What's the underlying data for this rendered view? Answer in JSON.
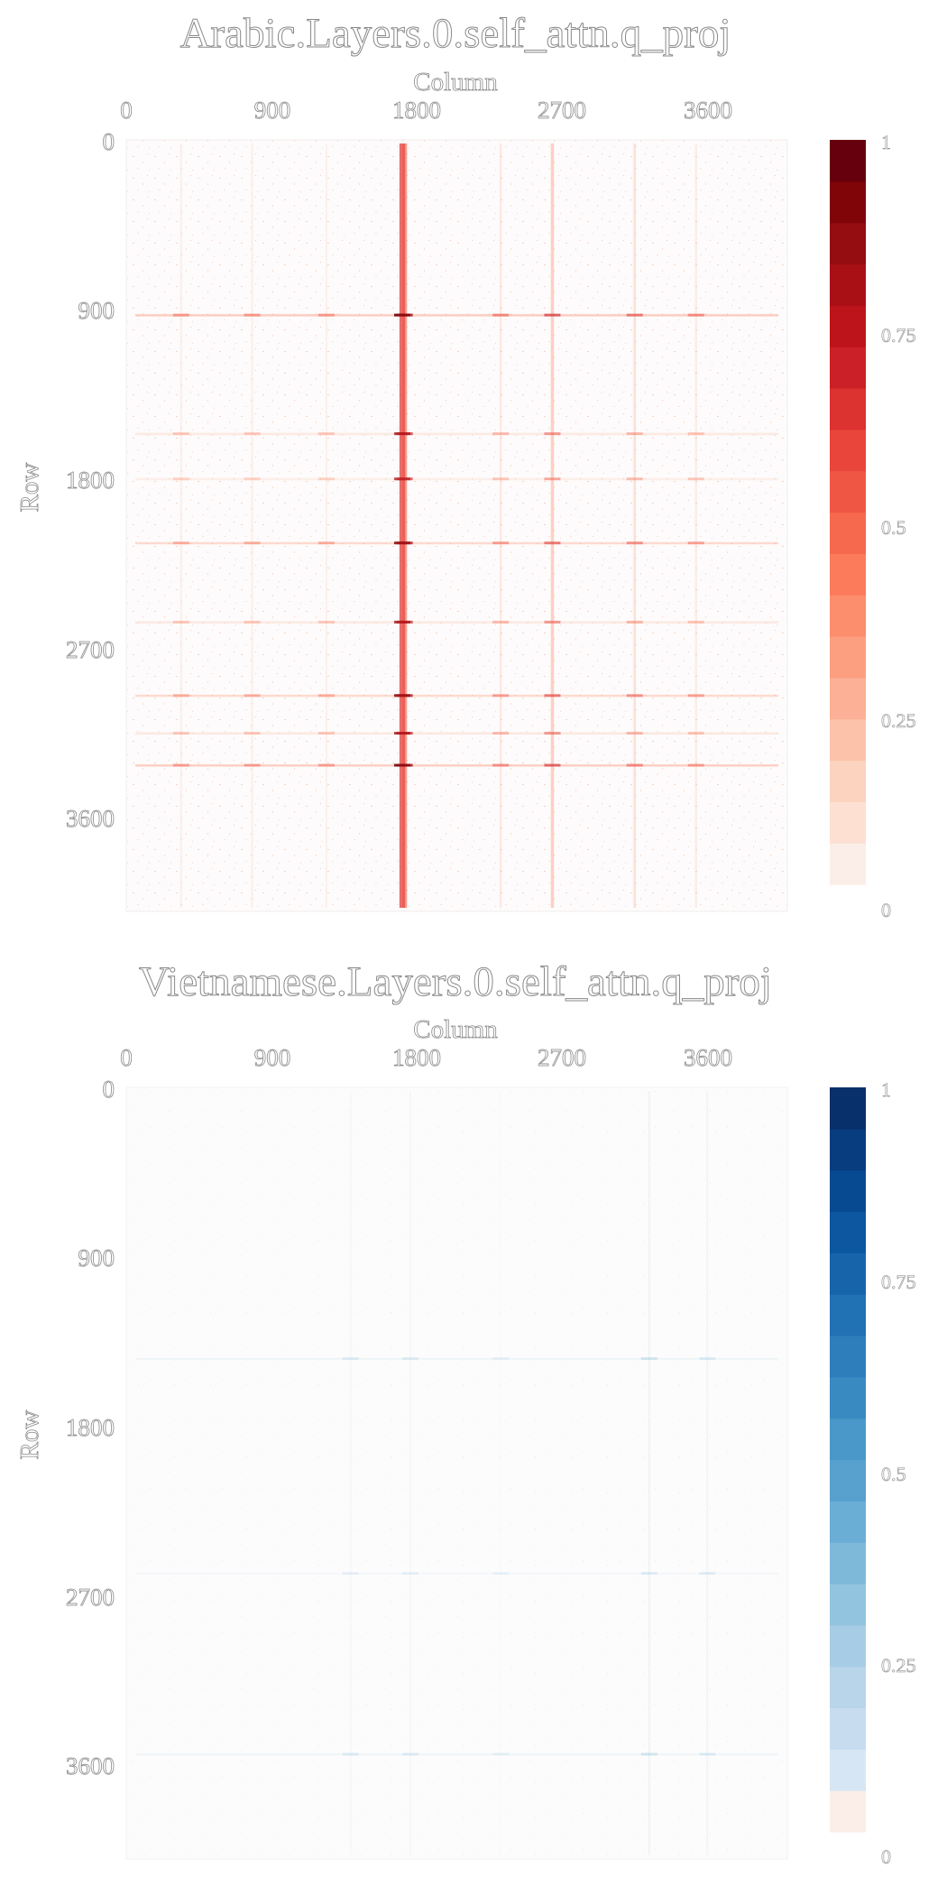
{
  "chart_data": [
    {
      "type": "heatmap",
      "title": "Arabic.Layers.0.self_attn.q_proj",
      "xlabel": "Column",
      "ylabel": "Row",
      "x_ticks": [
        "0",
        "900",
        "1800",
        "2700",
        "3600"
      ],
      "y_ticks": [
        "0",
        "900",
        "1800",
        "2700",
        "3600"
      ],
      "x_range": [
        0,
        4096
      ],
      "y_range": [
        0,
        4096
      ],
      "colorbar": {
        "colormap": "Reds",
        "ticks": [
          "1",
          "0.75",
          "0.5",
          "0.25",
          "0"
        ],
        "range": [
          0,
          1
        ],
        "colors": [
          "#fbeee8",
          "#fde0d2",
          "#fcd3bf",
          "#fcc2aa",
          "#fcb095",
          "#fc9f80",
          "#fc8d6d",
          "#fb7b5b",
          "#f6694f",
          "#f05644",
          "#e9453a",
          "#dc3230",
          "#cb2027",
          "#bc141a",
          "#a91016",
          "#950c11",
          "#7f0509",
          "#67000d"
        ]
      },
      "hot_columns": [
        {
          "col": 1710,
          "intensity": 0.22
        },
        {
          "col": 1725,
          "intensity": 0.18
        },
        {
          "col": 2640,
          "intensity": 0.12
        },
        {
          "col": 2320,
          "intensity": 0.08
        },
        {
          "col": 3150,
          "intensity": 0.09
        },
        {
          "col": 3530,
          "intensity": 0.07
        },
        {
          "col": 1240,
          "intensity": 0.06
        },
        {
          "col": 780,
          "intensity": 0.06
        },
        {
          "col": 340,
          "intensity": 0.06
        }
      ],
      "hot_rows": [
        {
          "row": 930,
          "intensity": 0.12
        },
        {
          "row": 2140,
          "intensity": 0.1
        },
        {
          "row": 2950,
          "intensity": 0.1
        },
        {
          "row": 3320,
          "intensity": 0.11
        },
        {
          "row": 3150,
          "intensity": 0.07
        },
        {
          "row": 1560,
          "intensity": 0.07
        },
        {
          "row": 1800,
          "intensity": 0.06
        },
        {
          "row": 2560,
          "intensity": 0.07
        }
      ]
    },
    {
      "type": "heatmap",
      "title": "Vietnamese.Layers.0.self_attn.q_proj",
      "xlabel": "Column",
      "ylabel": "Row",
      "x_ticks": [
        "0",
        "900",
        "1800",
        "2700",
        "3600"
      ],
      "y_ticks": [
        "0",
        "900",
        "1800",
        "2700",
        "3600"
      ],
      "x_range": [
        0,
        4096
      ],
      "y_range": [
        0,
        4096
      ],
      "colorbar": {
        "colormap": "Blues",
        "ticks": [
          "1",
          "0.75",
          "0.5",
          "0.25",
          "0"
        ],
        "range": [
          0,
          1
        ],
        "colors": [
          "#fbeee8",
          "#d6e6f4",
          "#c8dcef",
          "#b8d5ea",
          "#a6cde5",
          "#93c4df",
          "#7fb9da",
          "#6aaed6",
          "#58a1cf",
          "#4a98c9",
          "#3a8ac2",
          "#2f7ebc",
          "#2171b5",
          "#1764ab",
          "#0d57a1",
          "#084a91",
          "#083d7f",
          "#08306b"
        ]
      },
      "hot_columns": [
        {
          "col": 3240,
          "intensity": 0.06
        },
        {
          "col": 3600,
          "intensity": 0.05
        },
        {
          "col": 1760,
          "intensity": 0.04
        },
        {
          "col": 1390,
          "intensity": 0.04
        },
        {
          "col": 2320,
          "intensity": 0.03
        }
      ],
      "hot_rows": [
        {
          "row": 1440,
          "intensity": 0.05
        },
        {
          "row": 3540,
          "intensity": 0.05
        },
        {
          "row": 2580,
          "intensity": 0.04
        }
      ]
    }
  ]
}
